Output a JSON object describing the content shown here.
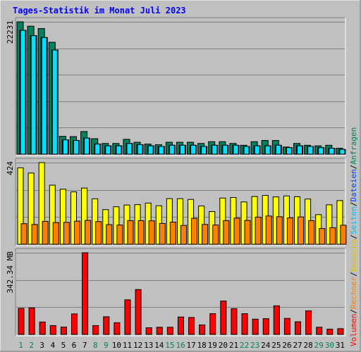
{
  "chart_data": {
    "type": "bar",
    "title": "Tages-Statistik im Monat Juli 2023",
    "categories": [
      "1",
      "2",
      "3",
      "4",
      "5",
      "6",
      "7",
      "8",
      "9",
      "10",
      "11",
      "12",
      "13",
      "14",
      "15",
      "16",
      "17",
      "18",
      "19",
      "20",
      "21",
      "22",
      "23",
      "24",
      "25",
      "26",
      "27",
      "28",
      "29",
      "30",
      "31"
    ],
    "weekend_days": [
      "1",
      "2",
      "8",
      "9",
      "15",
      "16",
      "22",
      "23",
      "29",
      "30"
    ],
    "panels": [
      {
        "id": "requests",
        "max_label": "22231",
        "ylim": [
          0,
          22231
        ],
        "legend": [
          "Anfragen",
          "Dateien",
          "Seiten"
        ],
        "series": [
          {
            "name": "Anfragen",
            "color": "#00805c",
            "values": [
              22231,
              21500,
              21100,
              18800,
              3000,
              2950,
              3800,
              2600,
              1800,
              1800,
              2500,
              2000,
              1700,
              1600,
              2000,
              2000,
              2000,
              1800,
              2100,
              2100,
              1800,
              1500,
              2100,
              2300,
              2300,
              1200,
              1800,
              1500,
              1400,
              1500,
              1000
            ]
          },
          {
            "name": "Dateien",
            "color": "#0040ff",
            "values": [
              20800,
              19900,
              19600,
              17500,
              2400,
              2300,
              2700,
              1700,
              1400,
              1400,
              1800,
              1600,
              1400,
              1300,
              1500,
              1500,
              1500,
              1300,
              1500,
              1500,
              1500,
              1300,
              1400,
              1400,
              1500,
              1100,
              1400,
              1300,
              1100,
              1000,
              800
            ]
          },
          {
            "name": "Seiten",
            "color": "#00e0ff",
            "values": [
              20800,
              19900,
              19600,
              17500,
              2400,
              2300,
              2700,
              1700,
              1400,
              1400,
              1800,
              1600,
              1400,
              1300,
              1500,
              1500,
              1500,
              1300,
              1500,
              1500,
              1500,
              1300,
              1400,
              1400,
              1500,
              1100,
              1400,
              1300,
              1100,
              1000,
              800
            ]
          }
        ]
      },
      {
        "id": "visits",
        "max_label": "424",
        "ylim": [
          0,
          424
        ],
        "legend": [
          "Besuche",
          "Rechner"
        ],
        "series": [
          {
            "name": "Besuche",
            "color": "#ffff00",
            "values": [
              397,
              370,
              424,
              307,
              286,
              272,
              292,
              236,
              180,
              195,
              204,
              206,
              214,
              200,
              237,
              237,
              233,
              199,
              170,
              240,
              243,
              220,
              248,
              254,
              246,
              251,
              247,
              235,
              154,
              205,
              227
            ]
          },
          {
            "name": "Rechner",
            "color": "#ff8000",
            "values": [
              107,
              103,
              119,
              113,
              114,
              120,
              124,
              118,
              102,
              100,
              123,
              123,
              122,
              108,
              115,
              98,
              135,
              103,
              100,
              123,
              136,
              124,
              141,
              147,
              143,
              137,
              142,
              123,
              82,
              86,
              99
            ]
          }
        ]
      },
      {
        "id": "volume",
        "max_label": "342.34 MB",
        "ylim": [
          0,
          342.34
        ],
        "legend": [
          "Volumen"
        ],
        "series": [
          {
            "name": "Volumen",
            "color": "#ff0000",
            "values": [
              109,
              111,
              52,
              37,
              31,
              86,
              342.34,
              37,
              74,
              49,
              145,
              188,
              28,
              30,
              30,
              73,
              71,
              40,
              87,
              140,
              108,
              87,
              64,
              66,
              120,
              67,
              53,
              99,
              30,
              22,
              24
            ]
          }
        ]
      }
    ],
    "legend_right": [
      {
        "text": "Volumen",
        "color": "#ff0000"
      },
      {
        "text": "Rechner",
        "color": "#ff8000"
      },
      {
        "text": "Besuche",
        "color": "#e0c000"
      },
      {
        "text": "Seiten",
        "color": "#00c0ff"
      },
      {
        "text": "Dateien",
        "color": "#0040ff"
      },
      {
        "text": "Anfragen",
        "color": "#00805c"
      }
    ],
    "grid": true
  }
}
